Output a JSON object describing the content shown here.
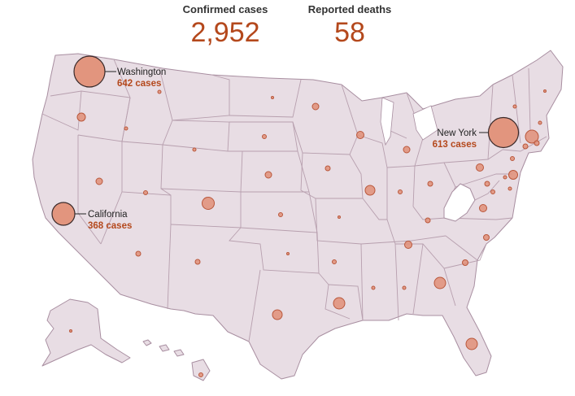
{
  "header": {
    "cases_label": "Confirmed cases",
    "cases_value": "2,952",
    "deaths_label": "Reported deaths",
    "deaths_value": "58"
  },
  "colors": {
    "state_fill": "#e8dde4",
    "state_border": "#a88ea0",
    "bubble_fill": "#e08f78",
    "accent_text": "#b4481c",
    "highlight_state": "#ffffff"
  },
  "callouts": [
    {
      "state": "Washington",
      "name": "Washington",
      "count": "642 cases"
    },
    {
      "state": "New York",
      "name": "New York",
      "count": "613 cases"
    },
    {
      "state": "California",
      "name": "California",
      "count": "368 cases"
    }
  ]
}
